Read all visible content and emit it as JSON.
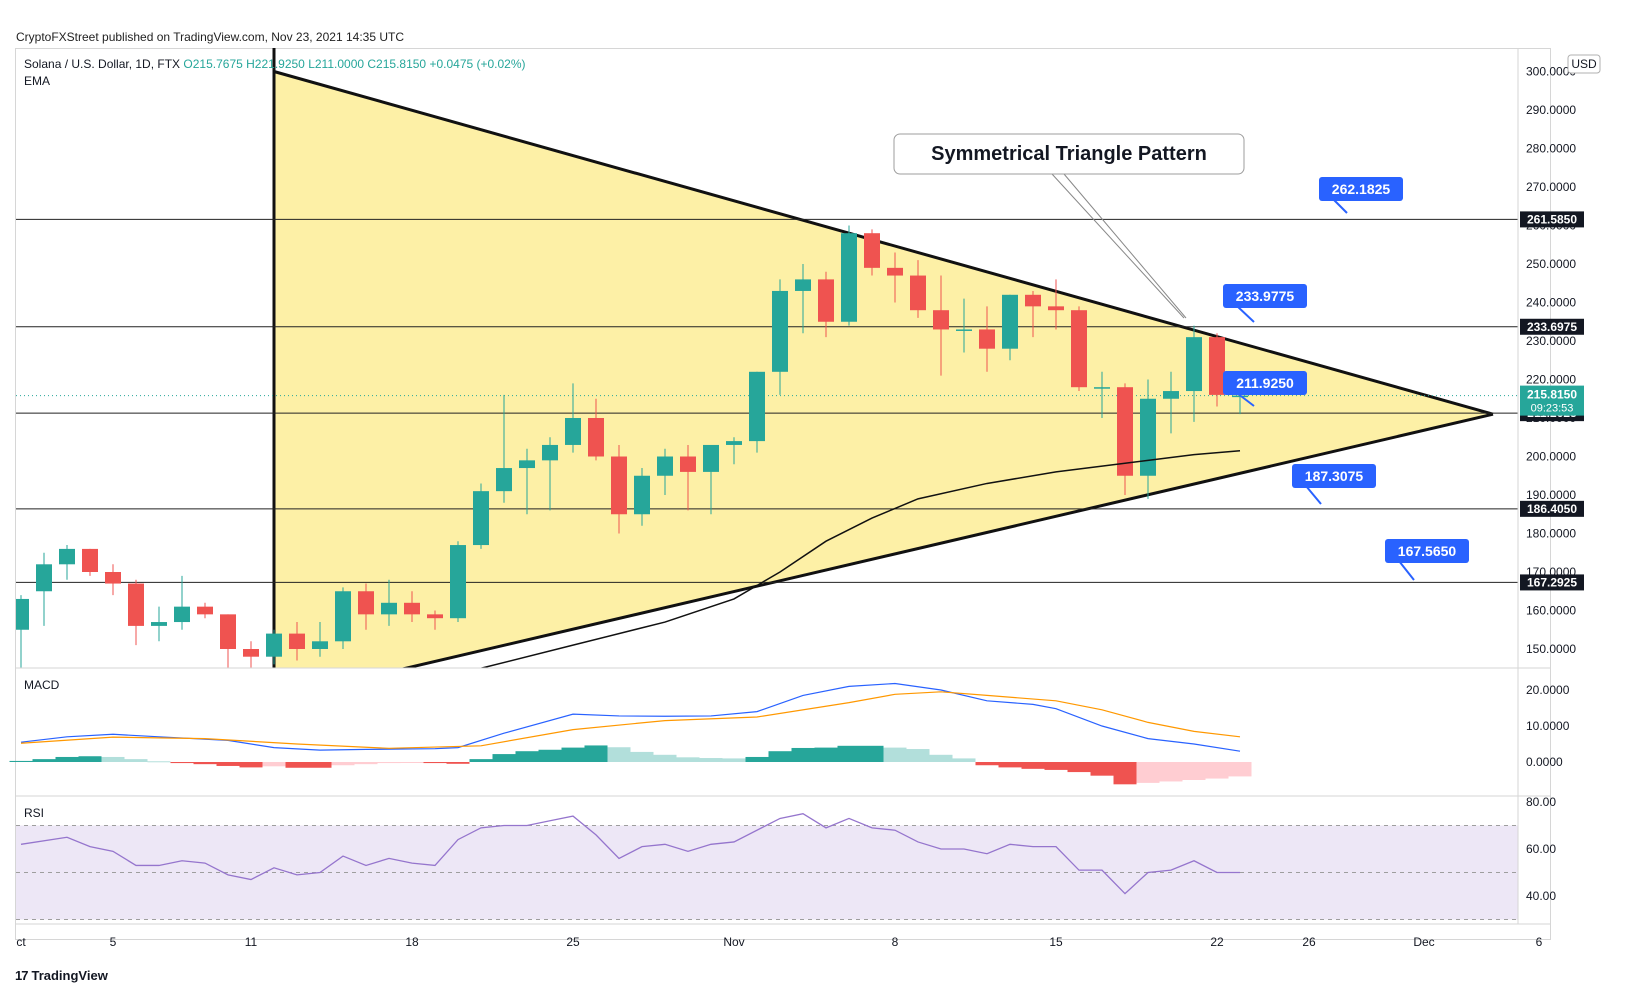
{
  "publisher": "CryptoFXStreet published on TradingView.com, Nov 23, 2021 14:35 UTC",
  "header": {
    "symbol": "Solana / U.S. Dollar, 1D, FTX",
    "open": "O215.7675",
    "high": "H221.9250",
    "low": "L211.0000",
    "close": "C215.8150",
    "change": "+0.0475 (+0.02%)",
    "indicator": "EMA"
  },
  "currency": "USD",
  "panes": {
    "macd": "MACD",
    "rsi": "RSI"
  },
  "colors": {
    "up": "#26a69a",
    "down": "#ef5350",
    "triangle_fill": "#fdf0a6",
    "label_blue": "#2962ff",
    "macd_line": "#2962ff",
    "signal_line": "#ff9800",
    "rsi_line": "#9575cd",
    "rsi_band": "#ede7f6"
  },
  "branding": "TradingView",
  "chart_data": [
    {
      "type": "candlestick",
      "title": "Solana / U.S. Dollar, 1D, FTX",
      "ylim": [
        145,
        301
      ],
      "y_ticks": [
        "150.0000",
        "160.0000",
        "170.0000",
        "180.0000",
        "190.0000",
        "200.0000",
        "210.0000",
        "220.0000",
        "230.0000",
        "240.0000",
        "250.0000",
        "260.0000",
        "270.0000",
        "280.0000",
        "290.0000",
        "300.0000"
      ],
      "x_ticks": [
        {
          "label": "ct",
          "day": 0
        },
        {
          "label": "5",
          "day": 4
        },
        {
          "label": "11",
          "day": 10
        },
        {
          "label": "18",
          "day": 17
        },
        {
          "label": "25",
          "day": 24
        },
        {
          "label": "Nov",
          "day": 31
        },
        {
          "label": "8",
          "day": 38
        },
        {
          "label": "15",
          "day": 45
        },
        {
          "label": "22",
          "day": 52
        },
        {
          "label": "26",
          "day": 56
        },
        {
          "label": "Dec",
          "day": 61
        },
        {
          "label": "6",
          "day": 66
        }
      ],
      "candles": [
        {
          "o": 155,
          "h": 164,
          "l": 141,
          "c": 163
        },
        {
          "o": 165,
          "h": 175,
          "l": 156,
          "c": 172
        },
        {
          "o": 172,
          "h": 177,
          "l": 168,
          "c": 176
        },
        {
          "o": 176,
          "h": 176,
          "l": 169,
          "c": 170
        },
        {
          "o": 170,
          "h": 172,
          "l": 164,
          "c": 167
        },
        {
          "o": 167,
          "h": 168,
          "l": 151,
          "c": 156
        },
        {
          "o": 156,
          "h": 161,
          "l": 152,
          "c": 157
        },
        {
          "o": 157,
          "h": 169,
          "l": 155,
          "c": 161
        },
        {
          "o": 161,
          "h": 162,
          "l": 158,
          "c": 159
        },
        {
          "o": 159,
          "h": 159,
          "l": 145,
          "c": 150
        },
        {
          "o": 150,
          "h": 152,
          "l": 141,
          "c": 148
        },
        {
          "o": 148,
          "h": 155,
          "l": 146,
          "c": 154
        },
        {
          "o": 154,
          "h": 157,
          "l": 147,
          "c": 150
        },
        {
          "o": 150,
          "h": 157,
          "l": 148,
          "c": 152
        },
        {
          "o": 152,
          "h": 166,
          "l": 150,
          "c": 165
        },
        {
          "o": 165,
          "h": 167,
          "l": 155,
          "c": 159
        },
        {
          "o": 159,
          "h": 168,
          "l": 156,
          "c": 162
        },
        {
          "o": 162,
          "h": 165,
          "l": 157,
          "c": 159
        },
        {
          "o": 159,
          "h": 160,
          "l": 155,
          "c": 158
        },
        {
          "o": 158,
          "h": 178,
          "l": 157,
          "c": 177
        },
        {
          "o": 177,
          "h": 193,
          "l": 176,
          "c": 191
        },
        {
          "o": 191,
          "h": 216,
          "l": 188,
          "c": 197
        },
        {
          "o": 197,
          "h": 202,
          "l": 185,
          "c": 199
        },
        {
          "o": 199,
          "h": 205,
          "l": 186,
          "c": 203
        },
        {
          "o": 203,
          "h": 219,
          "l": 201,
          "c": 210
        },
        {
          "o": 210,
          "h": 215,
          "l": 199,
          "c": 200
        },
        {
          "o": 200,
          "h": 203,
          "l": 180,
          "c": 185
        },
        {
          "o": 185,
          "h": 197,
          "l": 182,
          "c": 195
        },
        {
          "o": 195,
          "h": 202,
          "l": 190,
          "c": 200
        },
        {
          "o": 200,
          "h": 203,
          "l": 186,
          "c": 196
        },
        {
          "o": 196,
          "h": 203,
          "l": 185,
          "c": 203
        },
        {
          "o": 203,
          "h": 205,
          "l": 198,
          "c": 204
        },
        {
          "o": 204,
          "h": 222,
          "l": 201,
          "c": 222
        },
        {
          "o": 222,
          "h": 246,
          "l": 216,
          "c": 243
        },
        {
          "o": 243,
          "h": 250,
          "l": 232,
          "c": 246
        },
        {
          "o": 246,
          "h": 248,
          "l": 231,
          "c": 235
        },
        {
          "o": 235,
          "h": 260,
          "l": 234,
          "c": 258
        },
        {
          "o": 258,
          "h": 259,
          "l": 247,
          "c": 249
        },
        {
          "o": 249,
          "h": 253,
          "l": 240,
          "c": 247
        },
        {
          "o": 247,
          "h": 251,
          "l": 236,
          "c": 238
        },
        {
          "o": 238,
          "h": 247,
          "l": 221,
          "c": 233
        },
        {
          "o": 233,
          "h": 241,
          "l": 227,
          "c": 233
        },
        {
          "o": 233,
          "h": 239,
          "l": 222,
          "c": 228
        },
        {
          "o": 228,
          "h": 242,
          "l": 225,
          "c": 242
        },
        {
          "o": 242,
          "h": 243,
          "l": 231,
          "c": 239
        },
        {
          "o": 239,
          "h": 246,
          "l": 233,
          "c": 238
        },
        {
          "o": 238,
          "h": 239,
          "l": 217,
          "c": 218
        },
        {
          "o": 218,
          "h": 222,
          "l": 210,
          "c": 218
        },
        {
          "o": 218,
          "h": 219,
          "l": 190,
          "c": 195
        },
        {
          "o": 195,
          "h": 220,
          "l": 189,
          "c": 215
        },
        {
          "o": 215,
          "h": 222,
          "l": 206,
          "c": 217
        },
        {
          "o": 217,
          "h": 234,
          "l": 209,
          "c": 231
        },
        {
          "o": 231,
          "h": 232,
          "l": 213,
          "c": 216
        },
        {
          "o": 215.7675,
          "h": 221.925,
          "l": 211,
          "c": 215.815
        }
      ],
      "ema": [
        {
          "day": 20,
          "v": 145
        },
        {
          "day": 24,
          "v": 151
        },
        {
          "day": 28,
          "v": 157
        },
        {
          "day": 31,
          "v": 163
        },
        {
          "day": 33,
          "v": 170
        },
        {
          "day": 35,
          "v": 178
        },
        {
          "day": 37,
          "v": 184
        },
        {
          "day": 39,
          "v": 189
        },
        {
          "day": 42,
          "v": 193
        },
        {
          "day": 45,
          "v": 196
        },
        {
          "day": 47,
          "v": 197.5
        },
        {
          "day": 49,
          "v": 199
        },
        {
          "day": 51,
          "v": 200.5
        },
        {
          "day": 53,
          "v": 201.5
        }
      ],
      "horizontal_levels": [
        "261.5850",
        "233.6975",
        "211.2625",
        "186.4050",
        "167.2925"
      ],
      "level_labels": [
        "262.1825",
        "233.9775",
        "211.9250",
        "187.3075",
        "167.5650"
      ],
      "current_price": {
        "value": "215.8150",
        "countdown": "09:23:53"
      },
      "triangle": {
        "apex_day": 64,
        "apex_value": 211,
        "upper_start": {
          "day": 11,
          "value": 300
        },
        "lower_start": {
          "day": 11,
          "value": 137
        }
      },
      "annotation": "Symmetrical Triangle Pattern"
    },
    {
      "type": "histogram+line",
      "title": "MACD",
      "ylim": [
        -6,
        24
      ],
      "y_ticks": [
        "0.0000",
        "10.0000",
        "20.0000"
      ],
      "macd": [
        {
          "day": 0,
          "v": 5.5
        },
        {
          "day": 2,
          "v": 7
        },
        {
          "day": 4,
          "v": 7.7
        },
        {
          "day": 6,
          "v": 7
        },
        {
          "day": 9,
          "v": 6
        },
        {
          "day": 11,
          "v": 4
        },
        {
          "day": 13,
          "v": 3.3
        },
        {
          "day": 15,
          "v": 3.5
        },
        {
          "day": 18,
          "v": 3.7
        },
        {
          "day": 19,
          "v": 4
        },
        {
          "day": 21,
          "v": 8
        },
        {
          "day": 24,
          "v": 13.3
        },
        {
          "day": 26,
          "v": 12.8
        },
        {
          "day": 28,
          "v": 12.7
        },
        {
          "day": 30,
          "v": 12.8
        },
        {
          "day": 32,
          "v": 14
        },
        {
          "day": 34,
          "v": 18.5
        },
        {
          "day": 36,
          "v": 21
        },
        {
          "day": 38,
          "v": 21.8
        },
        {
          "day": 40,
          "v": 20
        },
        {
          "day": 42,
          "v": 17
        },
        {
          "day": 44,
          "v": 16
        },
        {
          "day": 45,
          "v": 14.8
        },
        {
          "day": 47,
          "v": 10
        },
        {
          "day": 49,
          "v": 6.5
        },
        {
          "day": 51,
          "v": 5
        },
        {
          "day": 53,
          "v": 3
        }
      ],
      "signal": [
        {
          "day": 0,
          "v": 5.2
        },
        {
          "day": 4,
          "v": 6.9
        },
        {
          "day": 8,
          "v": 6.5
        },
        {
          "day": 12,
          "v": 5
        },
        {
          "day": 16,
          "v": 3.8
        },
        {
          "day": 20,
          "v": 4.5
        },
        {
          "day": 24,
          "v": 9
        },
        {
          "day": 28,
          "v": 11.5
        },
        {
          "day": 32,
          "v": 12.5
        },
        {
          "day": 36,
          "v": 16.5
        },
        {
          "day": 38,
          "v": 18.8
        },
        {
          "day": 40,
          "v": 19.5
        },
        {
          "day": 42,
          "v": 18.5
        },
        {
          "day": 45,
          "v": 17
        },
        {
          "day": 47,
          "v": 14.5
        },
        {
          "day": 49,
          "v": 11
        },
        {
          "day": 51,
          "v": 8.5
        },
        {
          "day": 53,
          "v": 7
        }
      ],
      "histogram": [
        0.3,
        0.8,
        1.4,
        1.6,
        1.4,
        0.8,
        0.2,
        -0.3,
        -0.6,
        -1.1,
        -1.5,
        -1.2,
        -1.6,
        -1.6,
        -0.9,
        -0.6,
        -0.3,
        -0.2,
        -0.3,
        -0.5,
        0.8,
        2.2,
        3.0,
        3.4,
        4.0,
        4.6,
        4.1,
        2.8,
        2.0,
        1.3,
        1.1,
        1.0,
        1.4,
        3.0,
        3.9,
        4.0,
        4.5,
        4.5,
        4.0,
        3.6,
        2.0,
        1.0,
        -0.9,
        -1.5,
        -1.9,
        -2.2,
        -2.8,
        -3.8,
        -6.2,
        -5.8,
        -5.4,
        -5.0,
        -4.6,
        -4.0
      ],
      "colors": {
        "pos_strong": "#26a69a",
        "pos_weak": "#b2dfdb",
        "neg_strong": "#ef5350",
        "neg_weak": "#ffcdd2"
      }
    },
    {
      "type": "line",
      "title": "RSI",
      "ylim": [
        25,
        80
      ],
      "y_ticks": [
        "40.00",
        "60.00",
        "80.00"
      ],
      "bands": {
        "upper": 70,
        "middle": 50,
        "lower": 30
      },
      "values": [
        {
          "day": 0,
          "v": 62
        },
        {
          "day": 2,
          "v": 65
        },
        {
          "day": 3,
          "v": 61
        },
        {
          "day": 4,
          "v": 59
        },
        {
          "day": 5,
          "v": 53
        },
        {
          "day": 6,
          "v": 53
        },
        {
          "day": 7,
          "v": 55
        },
        {
          "day": 8,
          "v": 54
        },
        {
          "day": 9,
          "v": 49
        },
        {
          "day": 10,
          "v": 47
        },
        {
          "day": 11,
          "v": 52
        },
        {
          "day": 12,
          "v": 49
        },
        {
          "day": 13,
          "v": 50
        },
        {
          "day": 14,
          "v": 57
        },
        {
          "day": 15,
          "v": 53
        },
        {
          "day": 16,
          "v": 56
        },
        {
          "day": 17,
          "v": 54
        },
        {
          "day": 18,
          "v": 53
        },
        {
          "day": 19,
          "v": 64
        },
        {
          "day": 20,
          "v": 69
        },
        {
          "day": 21,
          "v": 70
        },
        {
          "day": 22,
          "v": 70
        },
        {
          "day": 23,
          "v": 72
        },
        {
          "day": 24,
          "v": 74
        },
        {
          "day": 25,
          "v": 66
        },
        {
          "day": 26,
          "v": 56
        },
        {
          "day": 27,
          "v": 61
        },
        {
          "day": 28,
          "v": 62
        },
        {
          "day": 29,
          "v": 59
        },
        {
          "day": 30,
          "v": 62
        },
        {
          "day": 31,
          "v": 63
        },
        {
          "day": 33,
          "v": 73
        },
        {
          "day": 34,
          "v": 75
        },
        {
          "day": 35,
          "v": 69
        },
        {
          "day": 36,
          "v": 73
        },
        {
          "day": 37,
          "v": 69
        },
        {
          "day": 38,
          "v": 68
        },
        {
          "day": 39,
          "v": 63
        },
        {
          "day": 40,
          "v": 60
        },
        {
          "day": 41,
          "v": 60
        },
        {
          "day": 42,
          "v": 58
        },
        {
          "day": 43,
          "v": 62
        },
        {
          "day": 44,
          "v": 61
        },
        {
          "day": 45,
          "v": 61
        },
        {
          "day": 46,
          "v": 51
        },
        {
          "day": 47,
          "v": 51
        },
        {
          "day": 48,
          "v": 41
        },
        {
          "day": 49,
          "v": 50
        },
        {
          "day": 50,
          "v": 51
        },
        {
          "day": 51,
          "v": 55
        },
        {
          "day": 52,
          "v": 50
        },
        {
          "day": 53,
          "v": 50
        }
      ]
    }
  ]
}
